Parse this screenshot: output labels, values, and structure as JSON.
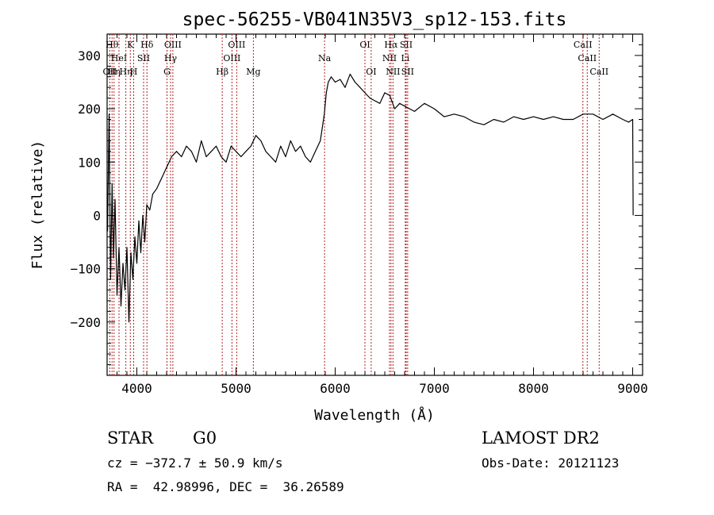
{
  "chart_data": {
    "type": "line",
    "title": "spec-56255-VB041N35V3_sp12-153.fits",
    "xlabel": "Wavelength (Å)",
    "ylabel": "Flux (relative)",
    "xlim": [
      3700,
      9100
    ],
    "ylim": [
      -300,
      340
    ],
    "x_ticks": [
      4000,
      5000,
      6000,
      7000,
      8000,
      9000
    ],
    "x_tick_labels": [
      "4000",
      "5000",
      "6000",
      "7000",
      "8000",
      "9000"
    ],
    "y_ticks": [
      -200,
      -100,
      0,
      100,
      200,
      300
    ],
    "y_tick_labels": [
      "−200",
      "−100",
      "0",
      "100",
      "200",
      "300"
    ],
    "grid": false,
    "line_color": "#000000",
    "marker_color": "#b22222",
    "series": [
      {
        "x": [
          3705,
          3720,
          3735,
          3750,
          3765,
          3780,
          3800,
          3820,
          3840,
          3860,
          3880,
          3900,
          3920,
          3940,
          3960,
          3980,
          4000,
          4020,
          4040,
          4060,
          4080,
          4100,
          4130,
          4160,
          4200,
          4250,
          4300,
          4350,
          4400,
          4450,
          4500,
          4550,
          4600,
          4650,
          4700,
          4750,
          4800,
          4850,
          4900,
          4950,
          5000,
          5050,
          5100,
          5150,
          5200,
          5250,
          5300,
          5350,
          5400,
          5450,
          5500,
          5550,
          5600,
          5650,
          5700,
          5750,
          5800,
          5850,
          5890,
          5910,
          5930,
          5960,
          6000,
          6050,
          6100,
          6150,
          6200,
          6250,
          6300,
          6350,
          6400,
          6450,
          6500,
          6550,
          6600,
          6650,
          6700,
          6750,
          6800,
          6900,
          7000,
          7100,
          7200,
          7300,
          7400,
          7500,
          7600,
          7700,
          7800,
          7900,
          8000,
          8100,
          8200,
          8300,
          8400,
          8500,
          8600,
          8700,
          8800,
          8900,
          8960,
          9000,
          9005
        ],
        "y": [
          -30,
          190,
          -120,
          60,
          -80,
          30,
          -150,
          -60,
          -170,
          -90,
          -140,
          -60,
          -200,
          -70,
          -120,
          -40,
          -90,
          -10,
          -70,
          0,
          -50,
          20,
          10,
          40,
          50,
          70,
          90,
          110,
          120,
          110,
          130,
          120,
          100,
          140,
          110,
          120,
          130,
          110,
          100,
          130,
          120,
          110,
          120,
          130,
          150,
          140,
          120,
          110,
          100,
          130,
          110,
          140,
          120,
          130,
          110,
          100,
          120,
          140,
          190,
          230,
          250,
          260,
          250,
          255,
          240,
          265,
          250,
          240,
          230,
          220,
          215,
          210,
          230,
          225,
          200,
          210,
          205,
          200,
          195,
          210,
          200,
          185,
          190,
          185,
          175,
          170,
          180,
          175,
          185,
          180,
          185,
          180,
          185,
          180,
          180,
          190,
          190,
          180,
          190,
          180,
          175,
          180,
          0
        ]
      }
    ],
    "line_markers": [
      {
        "wl": 3727,
        "label": "OII",
        "row": 3
      },
      {
        "wl": 3750,
        "label": "Hθ",
        "row": 1
      },
      {
        "wl": 3770,
        "label": "Hη",
        "row": 3
      },
      {
        "wl": 3820,
        "label": "HeI",
        "row": 2
      },
      {
        "wl": 3889,
        "label": "Hη",
        "row": 3
      },
      {
        "wl": 3934,
        "label": "K",
        "row": 1
      },
      {
        "wl": 3968,
        "label": "H",
        "row": 3
      },
      {
        "wl": 4068,
        "label": "SII",
        "row": 2
      },
      {
        "wl": 4102,
        "label": "Hδ",
        "row": 1
      },
      {
        "wl": 4304,
        "label": "G",
        "row": 3
      },
      {
        "wl": 4340,
        "label": "Hγ",
        "row": 2
      },
      {
        "wl": 4363,
        "label": "OIII",
        "row": 1
      },
      {
        "wl": 4861,
        "label": "Hβ",
        "row": 3
      },
      {
        "wl": 4959,
        "label": "OIII",
        "row": 2
      },
      {
        "wl": 5007,
        "label": "OIII",
        "row": 1
      },
      {
        "wl": 5175,
        "label": "Mg",
        "row": 3
      },
      {
        "wl": 5893,
        "label": "Na",
        "row": 2
      },
      {
        "wl": 6300,
        "label": "OI",
        "row": 1
      },
      {
        "wl": 6363,
        "label": "OI",
        "row": 3
      },
      {
        "wl": 6548,
        "label": "NII",
        "row": 2
      },
      {
        "wl": 6563,
        "label": "Hα",
        "row": 1
      },
      {
        "wl": 6583,
        "label": "NII",
        "row": 3
      },
      {
        "wl": 6707,
        "label": "Li",
        "row": 2
      },
      {
        "wl": 6716,
        "label": "SII",
        "row": 1
      },
      {
        "wl": 6731,
        "label": "SII",
        "row": 3
      },
      {
        "wl": 8498,
        "label": "CaII",
        "row": 1
      },
      {
        "wl": 8542,
        "label": "CaII",
        "row": 2
      },
      {
        "wl": 8662,
        "label": "CaII",
        "row": 3
      }
    ]
  },
  "info": {
    "class": "STAR",
    "subclass": "G0",
    "survey": "LAMOST DR2",
    "cz": "cz = −372.7 ± 50.9 km/s",
    "obs_date": "Obs-Date: 20121123",
    "radec": "RA =  42.98996, DEC =  36.26589"
  }
}
